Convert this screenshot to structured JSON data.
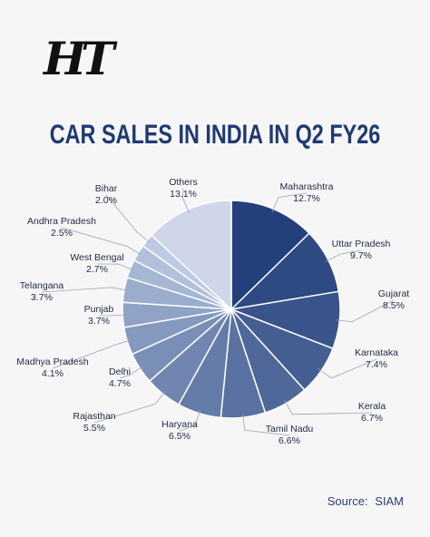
{
  "logo": "HT",
  "colors": {
    "title": "#1e3a73",
    "dark": "#23407c",
    "light": "#bccbe3",
    "others": "#cfd6e8"
  },
  "chart_data": {
    "type": "pie",
    "title": "CAR SALES IN INDIA IN Q2 FY26",
    "slices": [
      {
        "label": "Maharashtra",
        "value": 12.7,
        "display": "12.7%"
      },
      {
        "label": "Uttar Pradesh",
        "value": 9.7,
        "display": "9.7%"
      },
      {
        "label": "Gujarat",
        "value": 8.5,
        "display": "8.5%"
      },
      {
        "label": "Karnataka",
        "value": 7.4,
        "display": "7.4%"
      },
      {
        "label": "Kerala",
        "value": 6.7,
        "display": "6.7%"
      },
      {
        "label": "Tamil Nadu",
        "value": 6.6,
        "display": "6.6%"
      },
      {
        "label": "Haryana",
        "value": 6.5,
        "display": "6.5%"
      },
      {
        "label": "Rajasthan",
        "value": 5.5,
        "display": "5.5%"
      },
      {
        "label": "Delhi",
        "value": 4.7,
        "display": "4.7%"
      },
      {
        "label": "Madhya Pradesh",
        "value": 4.1,
        "display": "4.1%"
      },
      {
        "label": "Punjab",
        "value": 3.7,
        "display": "3.7%"
      },
      {
        "label": "Telangana",
        "value": 3.7,
        "display": "3.7%"
      },
      {
        "label": "West Bengal",
        "value": 2.7,
        "display": "2.7%"
      },
      {
        "label": "Andhra Pradesh",
        "value": 2.5,
        "display": "2.5%"
      },
      {
        "label": "Bihar",
        "value": 2.0,
        "display": "2.0%"
      },
      {
        "label": "Others",
        "value": 13.1,
        "display": "13.1%"
      }
    ]
  },
  "source": {
    "label": "Source:",
    "name": "SIAM"
  }
}
